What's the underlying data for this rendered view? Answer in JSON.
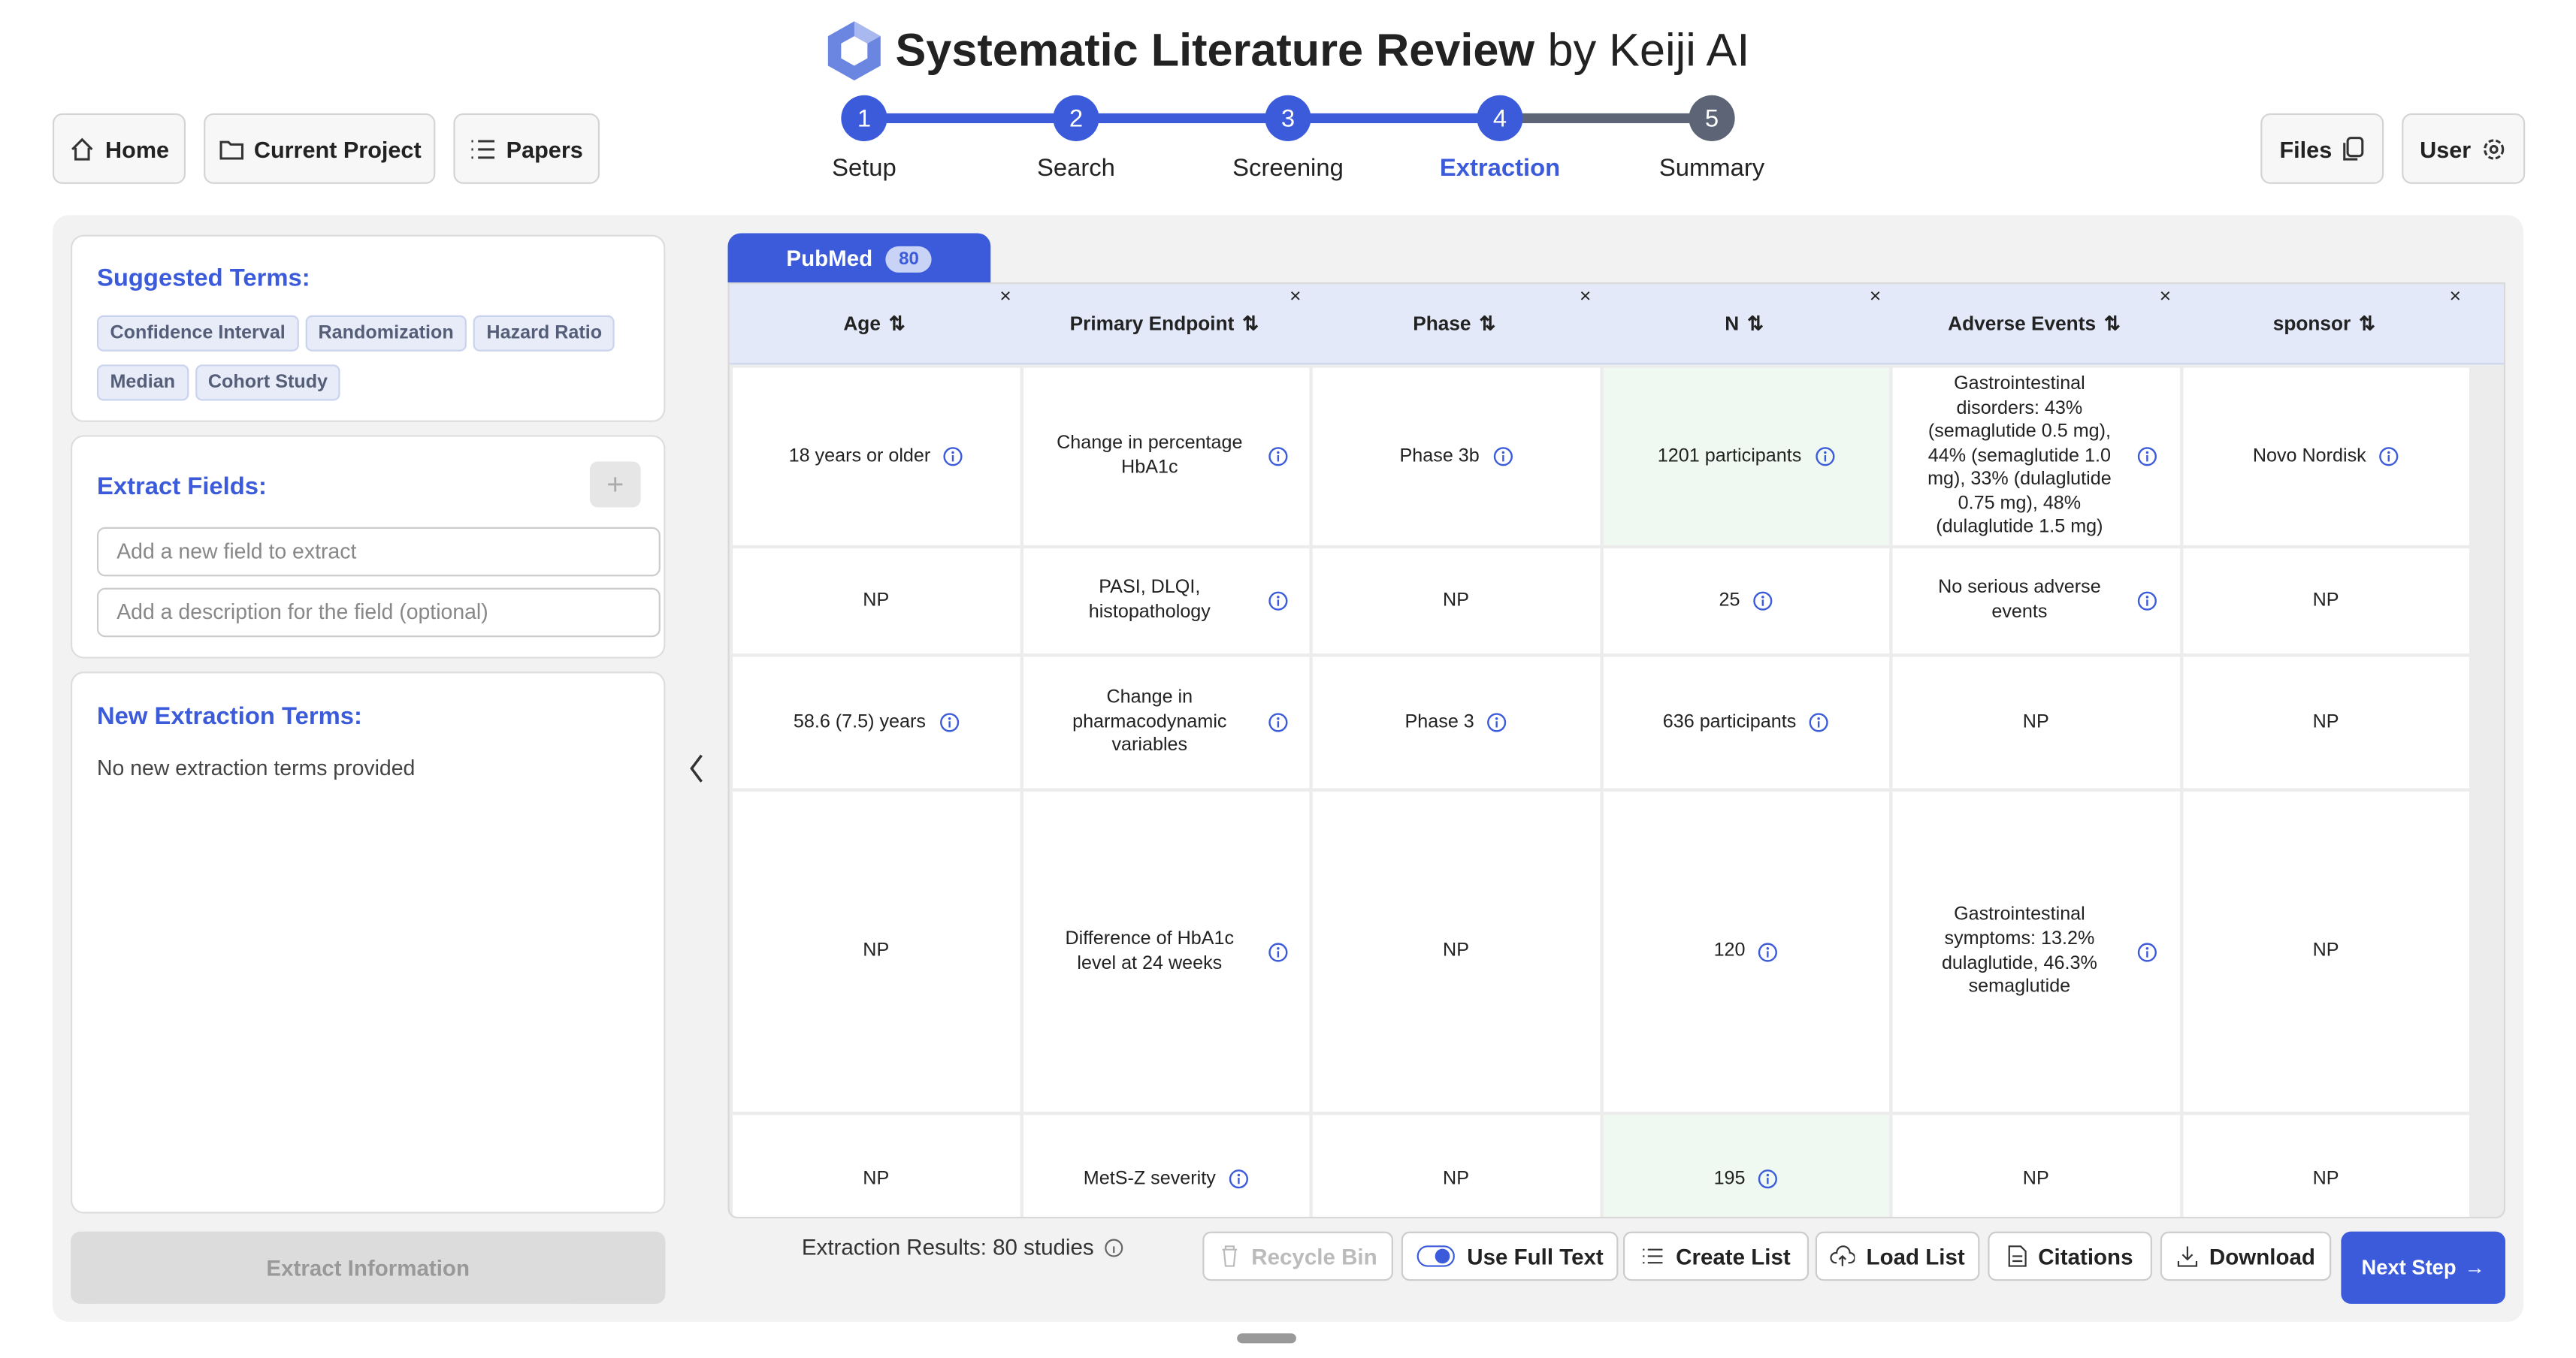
{
  "header": {
    "title": "Systematic Literature Review",
    "byline": "by Keiji AI"
  },
  "nav": [
    "Home",
    "Current Project",
    "Papers"
  ],
  "right_nav": [
    "Files",
    "User"
  ],
  "steps": [
    {
      "number": 1,
      "label": "Setup"
    },
    {
      "number": 2,
      "label": "Search"
    },
    {
      "number": 3,
      "label": "Screening"
    },
    {
      "number": 4,
      "label": "Extraction"
    },
    {
      "number": 5,
      "label": "Summary"
    }
  ],
  "active_step": 4,
  "sidebar": {
    "suggested_title": "Suggested Terms:",
    "suggested_terms": [
      "Confidence Interval",
      "Randomization",
      "Hazard Ratio",
      "Median",
      "Cohort Study"
    ],
    "extract_title": "Extract Fields:",
    "field_placeholder": "Add a new field to extract",
    "description_placeholder": "Add a description for the field (optional)",
    "new_terms_title": "New Extraction Terms:",
    "new_terms_text": "No new extraction terms provided",
    "extract_button": "Extract Information"
  },
  "tab": {
    "label": "PubMed",
    "count": 80
  },
  "table": {
    "columns": [
      "Age",
      "Primary Endpoint",
      "Phase",
      "N",
      "Adverse Events",
      "sponsor"
    ],
    "rows": [
      [
        "18 years or older",
        "Change in percentage HbA1c",
        "Phase 3b",
        "1201 participants",
        "Gastrointestinal disorders: 43% (semaglutide 0.5 mg), 44% (semaglutide 1.0 mg), 33% (dulaglutide 0.75 mg), 48% (dulaglutide 1.5 mg)",
        "Novo Nordisk"
      ],
      [
        "NP",
        "PASI, DLQI, histopathology",
        "NP",
        "25",
        "No serious adverse events",
        "NP"
      ],
      [
        "58.6 (7.5) years",
        "Change in pharmacodynamic variables",
        "Phase 3",
        "636 participants",
        "NP",
        "NP"
      ],
      [
        "NP",
        "Difference of HbA1c level at 24 weeks",
        "NP",
        "120",
        "Gastrointestinal symptoms: 13.2% dulaglutide, 46.3% semaglutide",
        "NP"
      ],
      [
        "NP",
        "MetS-Z severity",
        "NP",
        "195",
        "NP",
        "NP"
      ]
    ]
  },
  "footer": {
    "results": "Extraction Results: 80 studies",
    "buttons": [
      "Recycle Bin",
      "Use Full Text",
      "Create List",
      "Load List",
      "Citations",
      "Download"
    ],
    "next": "Next Step"
  }
}
